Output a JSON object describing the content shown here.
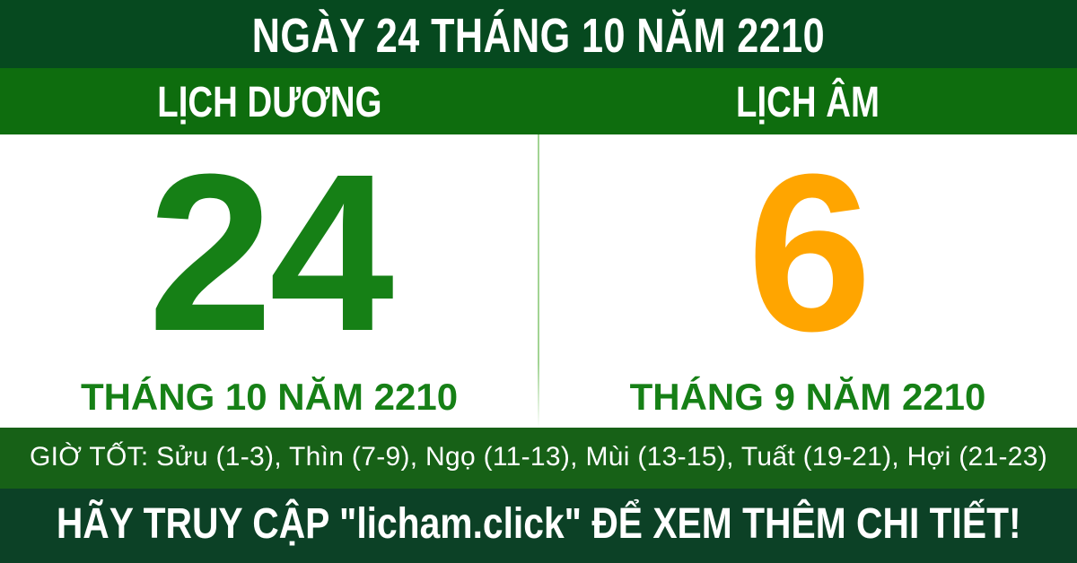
{
  "header": {
    "title": "NGÀY 24 THÁNG 10 NĂM 2210"
  },
  "calendar_types": {
    "solar_label": "LỊCH DƯƠNG",
    "lunar_label": "LỊCH ÂM"
  },
  "solar": {
    "day": "24",
    "month_year": "THÁNG 10 NĂM 2210"
  },
  "lunar": {
    "day": "6",
    "month_year": "THÁNG 9 NĂM 2210"
  },
  "good_hours": {
    "text": "GIỜ TỐT: Sửu (1-3), Thìn (7-9), Ngọ (11-13), Mùi (13-15), Tuất (19-21), Hợi (21-23)"
  },
  "footer": {
    "text": "HÃY TRUY CẬP \"licham.click\" ĐỂ XEM THÊM CHI TIẾT!"
  },
  "colors": {
    "header_bg": "#06491f",
    "band_bg": "#0e6d0e",
    "hours_bg": "#176117",
    "footer_bg": "#0c4126",
    "solar_green": "#168016",
    "lunar_orange": "#ffa500",
    "divider_green": "#a2d494",
    "text_white": "#ffffff"
  }
}
